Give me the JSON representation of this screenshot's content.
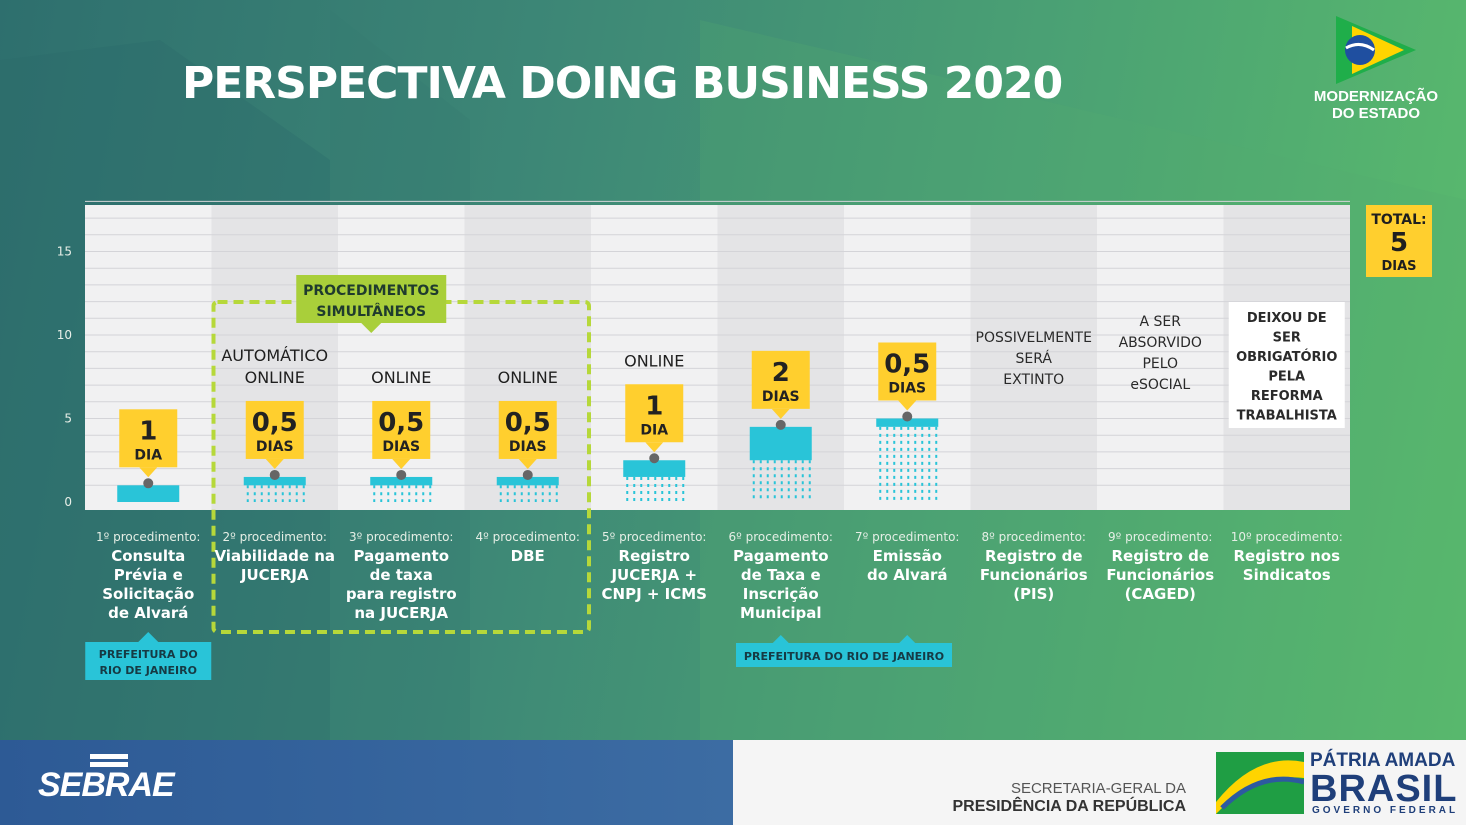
{
  "header": {
    "title": "PERSPECTIVA DOING BUSINESS 2020",
    "brand_line1": "MODERNIZAÇÃO",
    "brand_line2": "DO ESTADO"
  },
  "chart_data": {
    "type": "bar",
    "title": "PERSPECTIVA DOING BUSINESS 2020",
    "ylim": [
      0,
      18
    ],
    "yticks": [
      0,
      5,
      10,
      15
    ],
    "grid": true,
    "categories": [
      "1º procedimento: Consulta Prévia e Solicitação de Alvará",
      "2º procedimento: Viabilidade na JUCERJA",
      "3º procedimento: Pagamento de taxa para registro na JUCERJA",
      "4º procedimento: DBE",
      "5º procedimento: Registro JUCERJA + CNPJ + ICMS",
      "6º procedimento: Pagamento de Taxa e Inscrição Municipal",
      "7º procedimento: Emissão do Alvará",
      "8º procedimento: Registro de Funcionários (PIS)",
      "9º procedimento: Registro de Funcionários (CAGED)",
      "10º procedimento: Registro nos Sindicatos"
    ],
    "values": [
      1,
      0.5,
      0.5,
      0.5,
      1,
      2,
      0.5,
      null,
      null,
      null
    ],
    "cumulative": [
      1,
      1.5,
      1.5,
      1.5,
      2.5,
      4.5,
      5,
      null,
      null,
      null
    ],
    "total_label": [
      "TOTAL:",
      "5",
      "DIAS"
    ],
    "procedures": [
      {
        "num": "1º procedimento:",
        "name": [
          "Consulta",
          "Prévia e",
          "Solicitação",
          "de Alvará"
        ],
        "callout": [
          "1",
          "DIA"
        ],
        "tag": []
      },
      {
        "num": "2º procedimento:",
        "name": [
          "Viabilidade na",
          "JUCERJA"
        ],
        "callout": [
          "0,5",
          "DIAS"
        ],
        "tag": [
          "AUTOMÁTICO",
          "ONLINE"
        ]
      },
      {
        "num": "3º procedimento:",
        "name": [
          "Pagamento",
          "de taxa",
          "para registro",
          "na JUCERJA"
        ],
        "callout": [
          "0,5",
          "DIAS"
        ],
        "tag": [
          "ONLINE"
        ]
      },
      {
        "num": "4º procedimento:",
        "name": [
          "DBE"
        ],
        "callout": [
          "0,5",
          "DIAS"
        ],
        "tag": [
          "ONLINE"
        ]
      },
      {
        "num": "5º procedimento:",
        "name": [
          "Registro",
          "JUCERJA +",
          "CNPJ + ICMS"
        ],
        "callout": [
          "1",
          "DIA"
        ],
        "tag": [
          "ONLINE"
        ]
      },
      {
        "num": "6º procedimento:",
        "name": [
          "Pagamento",
          "de Taxa e",
          "Inscrição",
          "Municipal"
        ],
        "callout": [
          "2",
          "DIAS"
        ],
        "tag": []
      },
      {
        "num": "7º procedimento:",
        "name": [
          "Emissão",
          "do Alvará"
        ],
        "callout": [
          "0,5",
          "DIAS"
        ],
        "tag": []
      },
      {
        "num": "8º procedimento:",
        "name": [
          "Registro de",
          "Funcionários",
          "(PIS)"
        ],
        "callout": [],
        "tag": [],
        "note": [
          "POSSIVELMENTE",
          "SERÁ",
          "EXTINTO"
        ]
      },
      {
        "num": "9º procedimento:",
        "name": [
          "Registro de",
          "Funcionários",
          "(CAGED)"
        ],
        "callout": [],
        "tag": [],
        "note": [
          "A SER",
          "ABSORVIDO",
          "PELO",
          "eSOCIAL"
        ]
      },
      {
        "num": "10º procedimento:",
        "name": [
          "Registro nos",
          "Sindicatos"
        ],
        "callout": [],
        "tag": [],
        "note": [
          "DEIXOU DE",
          "SER",
          "OBRIGATÓRIO",
          "PELA",
          "REFORMA",
          "TRABALHISTA"
        ]
      }
    ],
    "annotations": {
      "simultaneous": [
        "PROCEDIMENTOS",
        "SIMULTÂNEOS"
      ],
      "prefeitura_1": [
        "PREFEITURA DO",
        "RIO DE JANEIRO"
      ],
      "prefeitura_2": "PREFEITURA DO RIO DE JANEIRO"
    }
  },
  "footer": {
    "sebrae": "SEBRAE",
    "secretaria_line1": "SECRETARIA-GERAL DA",
    "secretaria_line2": "PRESIDÊNCIA DA REPÚBLICA",
    "patria": "PÁTRIA AMADA",
    "brasil": "BRASIL",
    "governo": "GOVERNO FEDERAL"
  },
  "colors": {
    "accent_yellow": "#ffcf2e",
    "bar_cyan": "#29c4d8",
    "dashed_green": "#b6d83a",
    "tag_green": "#a9cf3a"
  }
}
